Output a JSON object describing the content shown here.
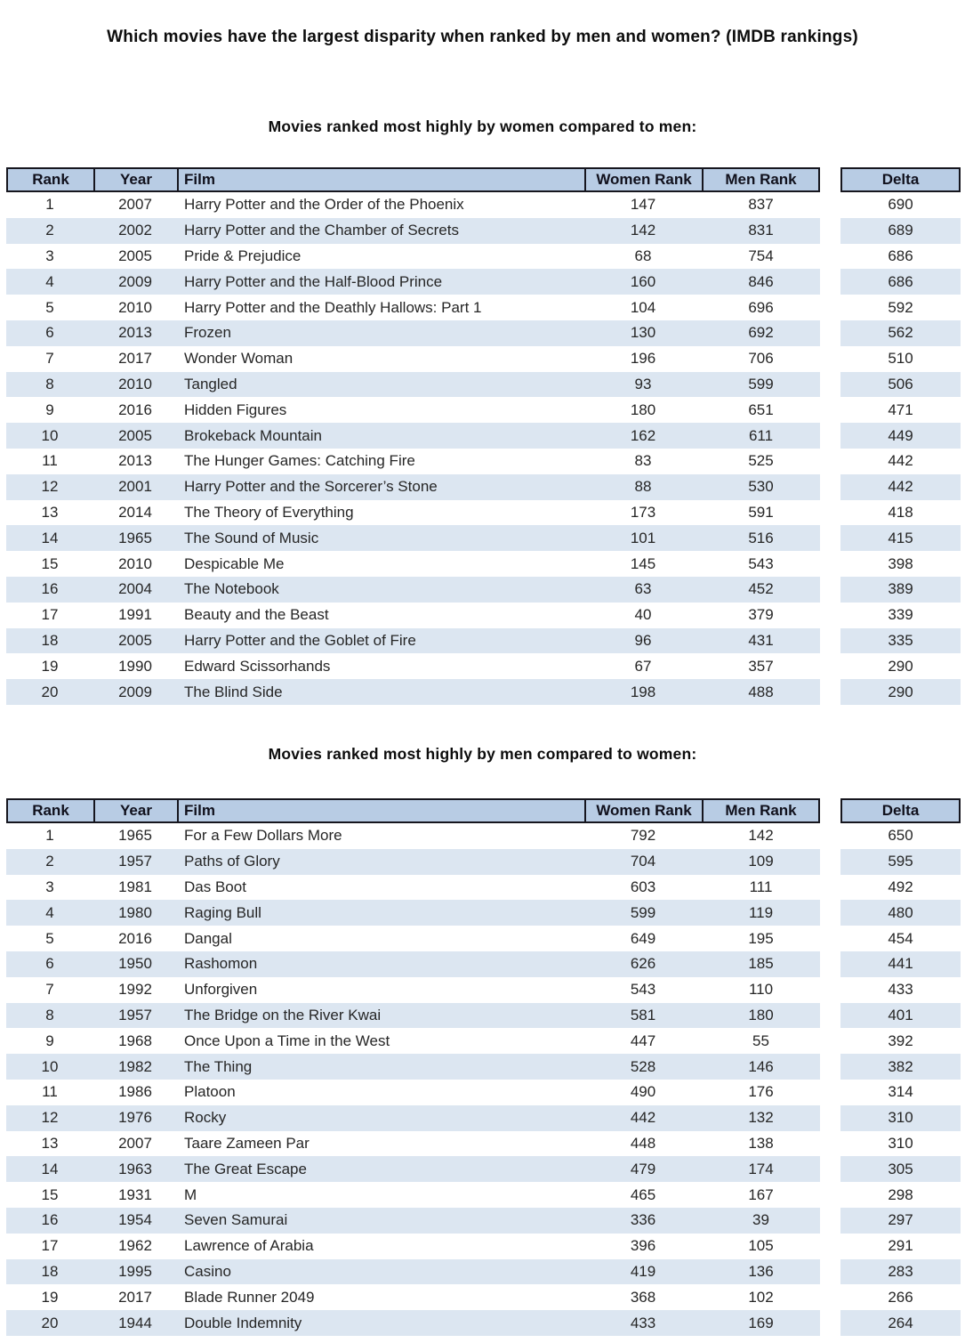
{
  "page_title": "Which movies have the largest disparity when ranked by men and women? (IMDB rankings)",
  "colors": {
    "header_bg": "#b8cce4",
    "row_alt_bg": "#dce6f1",
    "row_bg": "#ffffff",
    "header_border": "#16161e",
    "text": "#262626"
  },
  "tables": [
    {
      "section_title": "Movies ranked most highly by women compared to men:",
      "headers": {
        "rank": "Rank",
        "year": "Year",
        "film": "Film",
        "women_rank": "Women Rank",
        "men_rank": "Men Rank",
        "delta": "Delta"
      },
      "rows": [
        {
          "rank": "1",
          "year": "2007",
          "film": "Harry Potter and the Order of the Phoenix",
          "women_rank": "147",
          "men_rank": "837",
          "delta": "690"
        },
        {
          "rank": "2",
          "year": "2002",
          "film": "Harry Potter and the Chamber of Secrets",
          "women_rank": "142",
          "men_rank": "831",
          "delta": "689"
        },
        {
          "rank": "3",
          "year": "2005",
          "film": "Pride & Prejudice",
          "women_rank": "68",
          "men_rank": "754",
          "delta": "686"
        },
        {
          "rank": "4",
          "year": "2009",
          "film": "Harry Potter and the Half-Blood Prince",
          "women_rank": "160",
          "men_rank": "846",
          "delta": "686"
        },
        {
          "rank": "5",
          "year": "2010",
          "film": "Harry Potter and the Deathly Hallows: Part 1",
          "women_rank": "104",
          "men_rank": "696",
          "delta": "592"
        },
        {
          "rank": "6",
          "year": "2013",
          "film": "Frozen",
          "women_rank": "130",
          "men_rank": "692",
          "delta": "562"
        },
        {
          "rank": "7",
          "year": "2017",
          "film": "Wonder Woman",
          "women_rank": "196",
          "men_rank": "706",
          "delta": "510"
        },
        {
          "rank": "8",
          "year": "2010",
          "film": "Tangled",
          "women_rank": "93",
          "men_rank": "599",
          "delta": "506"
        },
        {
          "rank": "9",
          "year": "2016",
          "film": "Hidden Figures",
          "women_rank": "180",
          "men_rank": "651",
          "delta": "471"
        },
        {
          "rank": "10",
          "year": "2005",
          "film": "Brokeback Mountain",
          "women_rank": "162",
          "men_rank": "611",
          "delta": "449"
        },
        {
          "rank": "11",
          "year": "2013",
          "film": "The Hunger Games: Catching Fire",
          "women_rank": "83",
          "men_rank": "525",
          "delta": "442"
        },
        {
          "rank": "12",
          "year": "2001",
          "film": "Harry Potter and the Sorcerer’s Stone",
          "women_rank": "88",
          "men_rank": "530",
          "delta": "442"
        },
        {
          "rank": "13",
          "year": "2014",
          "film": "The Theory of Everything",
          "women_rank": "173",
          "men_rank": "591",
          "delta": "418"
        },
        {
          "rank": "14",
          "year": "1965",
          "film": "The Sound of Music",
          "women_rank": "101",
          "men_rank": "516",
          "delta": "415"
        },
        {
          "rank": "15",
          "year": "2010",
          "film": "Despicable Me",
          "women_rank": "145",
          "men_rank": "543",
          "delta": "398"
        },
        {
          "rank": "16",
          "year": "2004",
          "film": "The Notebook",
          "women_rank": "63",
          "men_rank": "452",
          "delta": "389"
        },
        {
          "rank": "17",
          "year": "1991",
          "film": "Beauty and the Beast",
          "women_rank": "40",
          "men_rank": "379",
          "delta": "339"
        },
        {
          "rank": "18",
          "year": "2005",
          "film": "Harry Potter and the Goblet of Fire",
          "women_rank": "96",
          "men_rank": "431",
          "delta": "335"
        },
        {
          "rank": "19",
          "year": "1990",
          "film": "Edward Scissorhands",
          "women_rank": "67",
          "men_rank": "357",
          "delta": "290"
        },
        {
          "rank": "20",
          "year": "2009",
          "film": "The Blind Side",
          "women_rank": "198",
          "men_rank": "488",
          "delta": "290"
        }
      ]
    },
    {
      "section_title": "Movies ranked most highly by men compared to women:",
      "headers": {
        "rank": "Rank",
        "year": "Year",
        "film": "Film",
        "women_rank": "Women Rank",
        "men_rank": "Men Rank",
        "delta": "Delta"
      },
      "rows": [
        {
          "rank": "1",
          "year": "1965",
          "film": "For a Few Dollars More",
          "women_rank": "792",
          "men_rank": "142",
          "delta": "650"
        },
        {
          "rank": "2",
          "year": "1957",
          "film": "Paths of Glory",
          "women_rank": "704",
          "men_rank": "109",
          "delta": "595"
        },
        {
          "rank": "3",
          "year": "1981",
          "film": "Das Boot",
          "women_rank": "603",
          "men_rank": "111",
          "delta": "492"
        },
        {
          "rank": "4",
          "year": "1980",
          "film": "Raging Bull",
          "women_rank": "599",
          "men_rank": "119",
          "delta": "480"
        },
        {
          "rank": "5",
          "year": "2016",
          "film": "Dangal",
          "women_rank": "649",
          "men_rank": "195",
          "delta": "454"
        },
        {
          "rank": "6",
          "year": "1950",
          "film": "Rashomon",
          "women_rank": "626",
          "men_rank": "185",
          "delta": "441"
        },
        {
          "rank": "7",
          "year": "1992",
          "film": "Unforgiven",
          "women_rank": "543",
          "men_rank": "110",
          "delta": "433"
        },
        {
          "rank": "8",
          "year": "1957",
          "film": "The Bridge on the River Kwai",
          "women_rank": "581",
          "men_rank": "180",
          "delta": "401"
        },
        {
          "rank": "9",
          "year": "1968",
          "film": "Once Upon a Time in the West",
          "women_rank": "447",
          "men_rank": "55",
          "delta": "392"
        },
        {
          "rank": "10",
          "year": "1982",
          "film": "The Thing",
          "women_rank": "528",
          "men_rank": "146",
          "delta": "382"
        },
        {
          "rank": "11",
          "year": "1986",
          "film": "Platoon",
          "women_rank": "490",
          "men_rank": "176",
          "delta": "314"
        },
        {
          "rank": "12",
          "year": "1976",
          "film": "Rocky",
          "women_rank": "442",
          "men_rank": "132",
          "delta": "310"
        },
        {
          "rank": "13",
          "year": "2007",
          "film": "Taare Zameen Par",
          "women_rank": "448",
          "men_rank": "138",
          "delta": "310"
        },
        {
          "rank": "14",
          "year": "1963",
          "film": "The Great Escape",
          "women_rank": "479",
          "men_rank": "174",
          "delta": "305"
        },
        {
          "rank": "15",
          "year": "1931",
          "film": "M",
          "women_rank": "465",
          "men_rank": "167",
          "delta": "298"
        },
        {
          "rank": "16",
          "year": "1954",
          "film": "Seven Samurai",
          "women_rank": "336",
          "men_rank": "39",
          "delta": "297"
        },
        {
          "rank": "17",
          "year": "1962",
          "film": "Lawrence of Arabia",
          "women_rank": "396",
          "men_rank": "105",
          "delta": "291"
        },
        {
          "rank": "18",
          "year": "1995",
          "film": "Casino",
          "women_rank": "419",
          "men_rank": "136",
          "delta": "283"
        },
        {
          "rank": "19",
          "year": "2017",
          "film": "Blade Runner 2049",
          "women_rank": "368",
          "men_rank": "102",
          "delta": "266"
        },
        {
          "rank": "20",
          "year": "1944",
          "film": "Double Indemnity",
          "women_rank": "433",
          "men_rank": "169",
          "delta": "264"
        }
      ]
    }
  ]
}
